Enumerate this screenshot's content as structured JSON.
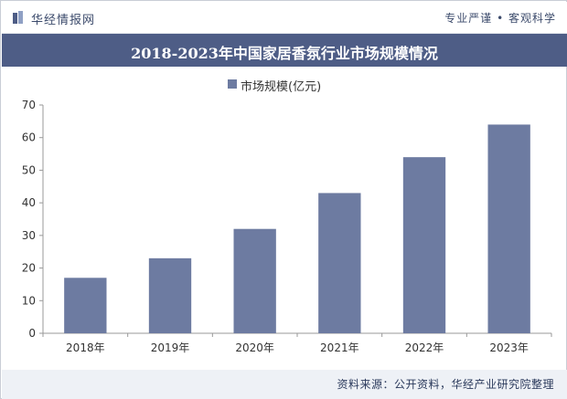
{
  "header": {
    "brand": "华经情报网",
    "tagline": "专业严谨 • 客观科学"
  },
  "footer": {
    "source": "资料来源：公开资料，华经产业研究院整理"
  },
  "chart_data": {
    "type": "bar",
    "title": "2018-2023年中国家居香氛行业市场规模情况",
    "categories": [
      "2018年",
      "2019年",
      "2020年",
      "2021年",
      "2022年",
      "2023年"
    ],
    "series": [
      {
        "name": "市场规模(亿元)",
        "values": [
          17,
          23,
          32,
          43,
          54,
          64
        ]
      }
    ],
    "ylim": [
      0,
      70
    ],
    "yticks": [
      0,
      10,
      20,
      30,
      40,
      50,
      60,
      70
    ],
    "xlabel": "",
    "ylabel": "",
    "legend": "top-center",
    "grid": false,
    "colors": {
      "bar": "#6d7ba1",
      "title_bg": "#4e5d86",
      "axis": "#999999"
    }
  }
}
